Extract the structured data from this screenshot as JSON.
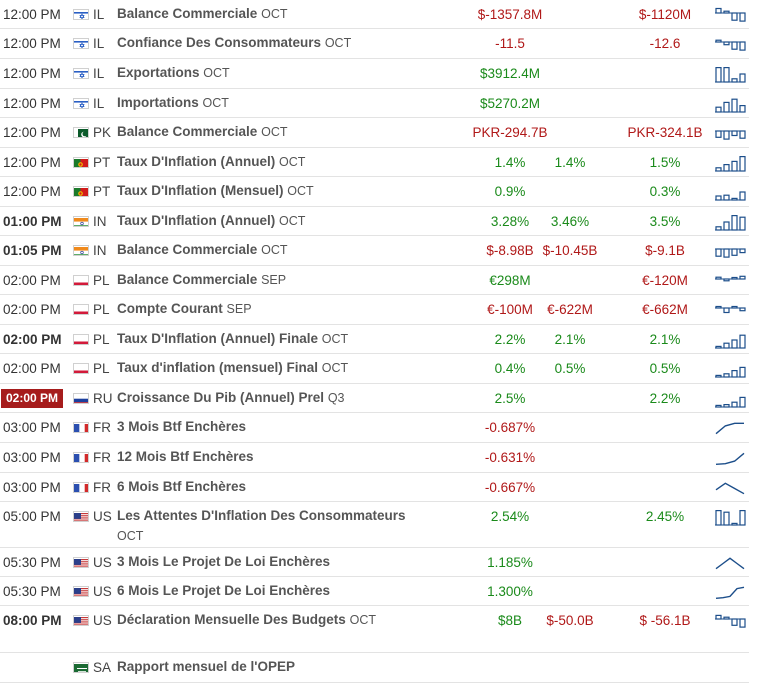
{
  "rows": [
    {
      "time": "12:00 PM",
      "bold": false,
      "hl": false,
      "country": "IL",
      "flag": "il",
      "event": "Balance Commerciale",
      "period": "OCT",
      "actual": "$-1357.8M",
      "actual_c": "neg",
      "forecast": "",
      "forecast_c": "",
      "previous": "$-1120M",
      "previous_c": "neg",
      "spark": "bars-mixed",
      "spark_vals": [
        0.5,
        0.2,
        -0.8,
        -0.9
      ]
    },
    {
      "time": "12:00 PM",
      "bold": false,
      "hl": false,
      "country": "IL",
      "flag": "il",
      "event": "Confiance Des Consommateurs",
      "period": "OCT",
      "actual": "-11.5",
      "actual_c": "neg",
      "forecast": "",
      "forecast_c": "",
      "previous": "-12.6",
      "previous_c": "neg",
      "spark": "bars-mixed",
      "spark_vals": [
        0.2,
        -0.3,
        -0.8,
        -0.9
      ]
    },
    {
      "time": "12:00 PM",
      "bold": false,
      "hl": false,
      "country": "IL",
      "flag": "il",
      "event": "Exportations",
      "period": "OCT",
      "actual": "$3912.4M",
      "actual_c": "pos",
      "forecast": "",
      "forecast_c": "",
      "previous": "",
      "previous_c": "",
      "spark": "bars-pos",
      "spark_vals": [
        0.9,
        0.9,
        0.2,
        0.5
      ]
    },
    {
      "time": "12:00 PM",
      "bold": false,
      "hl": false,
      "country": "IL",
      "flag": "il",
      "event": "Importations",
      "period": "OCT",
      "actual": "$5270.2M",
      "actual_c": "pos",
      "forecast": "",
      "forecast_c": "",
      "previous": "",
      "previous_c": "",
      "spark": "bars-pos",
      "spark_vals": [
        0.3,
        0.6,
        0.8,
        0.4
      ]
    },
    {
      "time": "12:00 PM",
      "bold": false,
      "hl": false,
      "country": "PK",
      "flag": "pk",
      "event": "Balance Commerciale",
      "period": "OCT",
      "actual": "PKR-294.7B",
      "actual_c": "neg",
      "forecast": "",
      "forecast_c": "",
      "previous": "PKR-324.1B",
      "previous_c": "neg",
      "spark": "bars-mixed",
      "spark_vals": [
        -0.7,
        -0.9,
        -0.5,
        -0.8
      ]
    },
    {
      "time": "12:00 PM",
      "bold": false,
      "hl": false,
      "country": "PT",
      "flag": "pt",
      "event": "Taux D'Inflation (Annuel)",
      "period": "OCT",
      "actual": "1.4%",
      "actual_c": "pos",
      "forecast": "1.4%",
      "forecast_c": "pos",
      "previous": "1.5%",
      "previous_c": "pos",
      "spark": "bars-pos",
      "spark_vals": [
        0.2,
        0.4,
        0.6,
        0.9
      ]
    },
    {
      "time": "12:00 PM",
      "bold": false,
      "hl": false,
      "country": "PT",
      "flag": "pt",
      "event": "Taux D'Inflation (Mensuel)",
      "period": "OCT",
      "actual": "0.9%",
      "actual_c": "pos",
      "forecast": "",
      "forecast_c": "pos",
      "previous": "0.3%",
      "previous_c": "pos",
      "spark": "bars-pos",
      "spark_vals": [
        0.25,
        0.3,
        0.1,
        0.5
      ]
    },
    {
      "time": "01:00 PM",
      "bold": true,
      "hl": false,
      "country": "IN",
      "flag": "in",
      "event": "Taux D'Inflation (Annuel)",
      "period": "OCT",
      "actual": "3.28%",
      "actual_c": "pos",
      "forecast": "3.46%",
      "forecast_c": "pos",
      "previous": "3.5%",
      "previous_c": "pos",
      "spark": "bars-pos",
      "spark_vals": [
        0.2,
        0.5,
        0.9,
        0.8
      ]
    },
    {
      "time": "01:05 PM",
      "bold": true,
      "hl": false,
      "country": "IN",
      "flag": "in",
      "event": "Balance Commerciale",
      "period": "OCT",
      "actual": "$-8.98B",
      "actual_c": "neg",
      "forecast": "$-10.45B",
      "forecast_c": "neg",
      "previous": "$-9.1B",
      "previous_c": "neg",
      "spark": "bars-mixed",
      "spark_vals": [
        -0.8,
        -0.9,
        -0.7,
        -0.4
      ]
    },
    {
      "time": "02:00 PM",
      "bold": false,
      "hl": false,
      "country": "PL",
      "flag": "pl",
      "event": "Balance Commerciale",
      "period": "SEP",
      "actual": "€298M",
      "actual_c": "pos",
      "forecast": "",
      "forecast_c": "",
      "previous": "€-120M",
      "previous_c": "neg",
      "spark": "bars-mixed",
      "spark_vals": [
        0.2,
        -0.2,
        0.1,
        0.3
      ]
    },
    {
      "time": "02:00 PM",
      "bold": false,
      "hl": false,
      "country": "PL",
      "flag": "pl",
      "event": "Compte Courant",
      "period": "SEP",
      "actual": "€-100M",
      "actual_c": "neg",
      "forecast": "€-622M",
      "forecast_c": "neg",
      "previous": "€-662M",
      "previous_c": "neg",
      "spark": "bars-mixed",
      "spark_vals": [
        0.1,
        -0.5,
        0.1,
        -0.3
      ]
    },
    {
      "time": "02:00 PM",
      "bold": true,
      "hl": false,
      "country": "PL",
      "flag": "pl",
      "event": "Taux D'Inflation (Annuel) Finale",
      "period": "OCT",
      "actual": "2.2%",
      "actual_c": "pos",
      "forecast": "2.1%",
      "forecast_c": "pos",
      "previous": "2.1%",
      "previous_c": "pos",
      "spark": "bars-pos",
      "spark_vals": [
        0.1,
        0.3,
        0.5,
        0.8
      ]
    },
    {
      "time": "02:00 PM",
      "bold": false,
      "hl": false,
      "country": "PL",
      "flag": "pl",
      "event": "Taux d'inflation (mensuel) Final",
      "period": "OCT",
      "actual": "0.4%",
      "actual_c": "pos",
      "forecast": "0.5%",
      "forecast_c": "pos",
      "previous": "0.5%",
      "previous_c": "pos",
      "spark": "bars-pos",
      "spark_vals": [
        0.1,
        0.2,
        0.4,
        0.6
      ]
    },
    {
      "time": "02:00 PM",
      "bold": false,
      "hl": true,
      "country": "RU",
      "flag": "ru",
      "event": "Croissance Du Pib (Annuel) Prel",
      "period": "Q3",
      "actual": "2.5%",
      "actual_c": "pos",
      "forecast": "",
      "forecast_c": "",
      "previous": "2.2%",
      "previous_c": "pos",
      "spark": "bars-pos",
      "spark_vals": [
        0.1,
        0.15,
        0.3,
        0.6
      ]
    },
    {
      "time": "03:00 PM",
      "bold": false,
      "hl": false,
      "country": "FR",
      "flag": "fr",
      "event": "3 Mois Btf Enchères",
      "period": "",
      "actual": "-0.687%",
      "actual_c": "neg",
      "forecast": "",
      "forecast_c": "",
      "previous": "",
      "previous_c": "",
      "spark": "line",
      "spark_vals": [
        0.1,
        0.7,
        0.9,
        0.9
      ]
    },
    {
      "time": "03:00 PM",
      "bold": false,
      "hl": false,
      "country": "FR",
      "flag": "fr",
      "event": "12 Mois Btf Enchères",
      "period": "",
      "actual": "-0.631%",
      "actual_c": "neg",
      "forecast": "",
      "forecast_c": "",
      "previous": "",
      "previous_c": "",
      "spark": "line",
      "spark_vals": [
        0.05,
        0.1,
        0.3,
        0.9
      ]
    },
    {
      "time": "03:00 PM",
      "bold": false,
      "hl": false,
      "country": "FR",
      "flag": "fr",
      "event": "6 Mois Btf Enchères",
      "period": "",
      "actual": "-0.667%",
      "actual_c": "neg",
      "forecast": "",
      "forecast_c": "",
      "previous": "",
      "previous_c": "",
      "spark": "line",
      "spark_vals": [
        0.4,
        0.9,
        0.5,
        0.1
      ]
    },
    {
      "time": "05:00 PM",
      "bold": false,
      "hl": false,
      "country": "US",
      "flag": "us",
      "event": "Les Attentes D'Inflation Des Consommateurs",
      "period": "OCT",
      "actual": "2.54%",
      "actual_c": "pos",
      "forecast": "",
      "forecast_c": "",
      "previous": "2.45%",
      "previous_c": "pos",
      "spark": "bars-pos",
      "spark_vals": [
        0.9,
        0.8,
        0.1,
        0.9
      ]
    },
    {
      "time": "05:30 PM",
      "bold": false,
      "hl": false,
      "country": "US",
      "flag": "us",
      "event": "3 Mois Le Projet De Loi Enchères",
      "period": "",
      "actual": "1.185%",
      "actual_c": "pos",
      "forecast": "",
      "forecast_c": "",
      "previous": "",
      "previous_c": "",
      "spark": "line",
      "spark_vals": [
        0.1,
        0.5,
        0.9,
        0.5,
        0.1
      ]
    },
    {
      "time": "05:30 PM",
      "bold": false,
      "hl": false,
      "country": "US",
      "flag": "us",
      "event": "6 Mois Le Projet De Loi Enchères",
      "period": "",
      "actual": "1.300%",
      "actual_c": "pos",
      "forecast": "",
      "forecast_c": "",
      "previous": "",
      "previous_c": "",
      "spark": "line",
      "spark_vals": [
        0.05,
        0.1,
        0.2,
        0.8,
        0.9
      ]
    },
    {
      "time": "08:00 PM",
      "bold": true,
      "hl": false,
      "country": "US",
      "flag": "us",
      "event": "Déclaration Mensuelle Des Budgets",
      "period": "OCT",
      "actual": "$8B",
      "actual_c": "pos",
      "forecast": "$-50.0B",
      "forecast_c": "neg",
      "previous": "$ -56.1B",
      "previous_c": "neg",
      "spark": "bars-mixed",
      "spark_vals": [
        0.4,
        0.2,
        -0.7,
        -0.9
      ]
    },
    {
      "time": "",
      "bold": false,
      "hl": false,
      "country": "SA",
      "flag": "sa",
      "event": "Rapport mensuel de l'OPEP",
      "period": "",
      "actual": "",
      "actual_c": "",
      "forecast": "",
      "forecast_c": "",
      "previous": "",
      "previous_c": "",
      "spark": "none",
      "spark_vals": []
    }
  ],
  "colors": {
    "positive": "#1a8a1a",
    "negative": "#b01818",
    "highlight": "#a61c1c",
    "spark": "#1c4e8a"
  }
}
